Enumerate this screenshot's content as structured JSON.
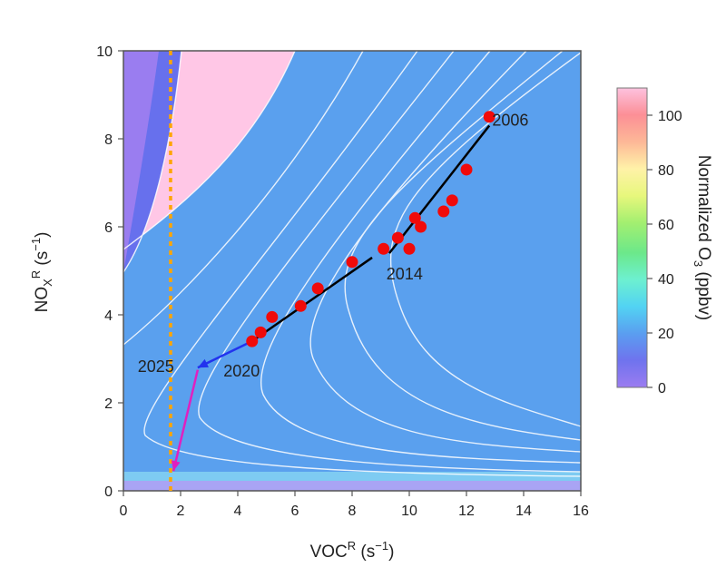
{
  "chart_data": {
    "type": "contour",
    "xlabel": {
      "main": "VOC",
      "sup": "R",
      "unit": " (s",
      "unit_sup": "−1",
      "close": ")"
    },
    "ylabel": {
      "main": "NO",
      "sub": "X",
      "sup": "R",
      "unit": " (s",
      "unit_sup": "−1",
      "close": ")"
    },
    "xlim": [
      0,
      16
    ],
    "ylim": [
      0,
      10
    ],
    "xticks": [
      "0",
      "2",
      "4",
      "6",
      "8",
      "10",
      "12",
      "14",
      "16"
    ],
    "yticks": [
      "0",
      "2",
      "4",
      "6",
      "8",
      "10"
    ],
    "colorbar": {
      "title": {
        "main": "Normalized O",
        "sub": "3",
        "unit": " (ppbv)"
      },
      "range": [
        0,
        110
      ],
      "ticks": [
        "0",
        "20",
        "40",
        "60",
        "80",
        "100"
      ]
    },
    "observations": [
      {
        "x": 4.5,
        "y": 3.4
      },
      {
        "x": 4.8,
        "y": 3.6
      },
      {
        "x": 5.2,
        "y": 3.95
      },
      {
        "x": 6.2,
        "y": 4.2
      },
      {
        "x": 6.8,
        "y": 4.6
      },
      {
        "x": 8.0,
        "y": 5.2
      },
      {
        "x": 9.1,
        "y": 5.5
      },
      {
        "x": 9.6,
        "y": 5.75
      },
      {
        "x": 10.0,
        "y": 5.5
      },
      {
        "x": 10.2,
        "y": 6.2
      },
      {
        "x": 10.4,
        "y": 6.0
      },
      {
        "x": 11.2,
        "y": 6.35
      },
      {
        "x": 11.5,
        "y": 6.6
      },
      {
        "x": 12.0,
        "y": 7.3
      },
      {
        "x": 12.8,
        "y": 8.5
      }
    ],
    "trend_lines": [
      {
        "from": [
          12.8,
          8.3
        ],
        "to": [
          9.3,
          5.4
        ]
      },
      {
        "from": [
          8.7,
          5.3
        ],
        "to": [
          4.5,
          3.4
        ]
      }
    ],
    "projections": [
      {
        "color": "#2233ee",
        "from": [
          4.5,
          3.4
        ],
        "to": [
          2.6,
          2.8
        ]
      },
      {
        "color": "#e020c0",
        "from": [
          2.6,
          2.75
        ],
        "to": [
          1.75,
          0.45
        ]
      }
    ],
    "vertical_reference": {
      "x": 1.65,
      "color": "#ffa500"
    },
    "labels": [
      {
        "text": "2006",
        "x": 12.9,
        "y": 8.3
      },
      {
        "text": "2014",
        "x": 9.2,
        "y": 4.8
      },
      {
        "text": "2020",
        "x": 3.5,
        "y": 2.6
      },
      {
        "text": "2025",
        "x": 0.5,
        "y": 2.7
      }
    ]
  }
}
